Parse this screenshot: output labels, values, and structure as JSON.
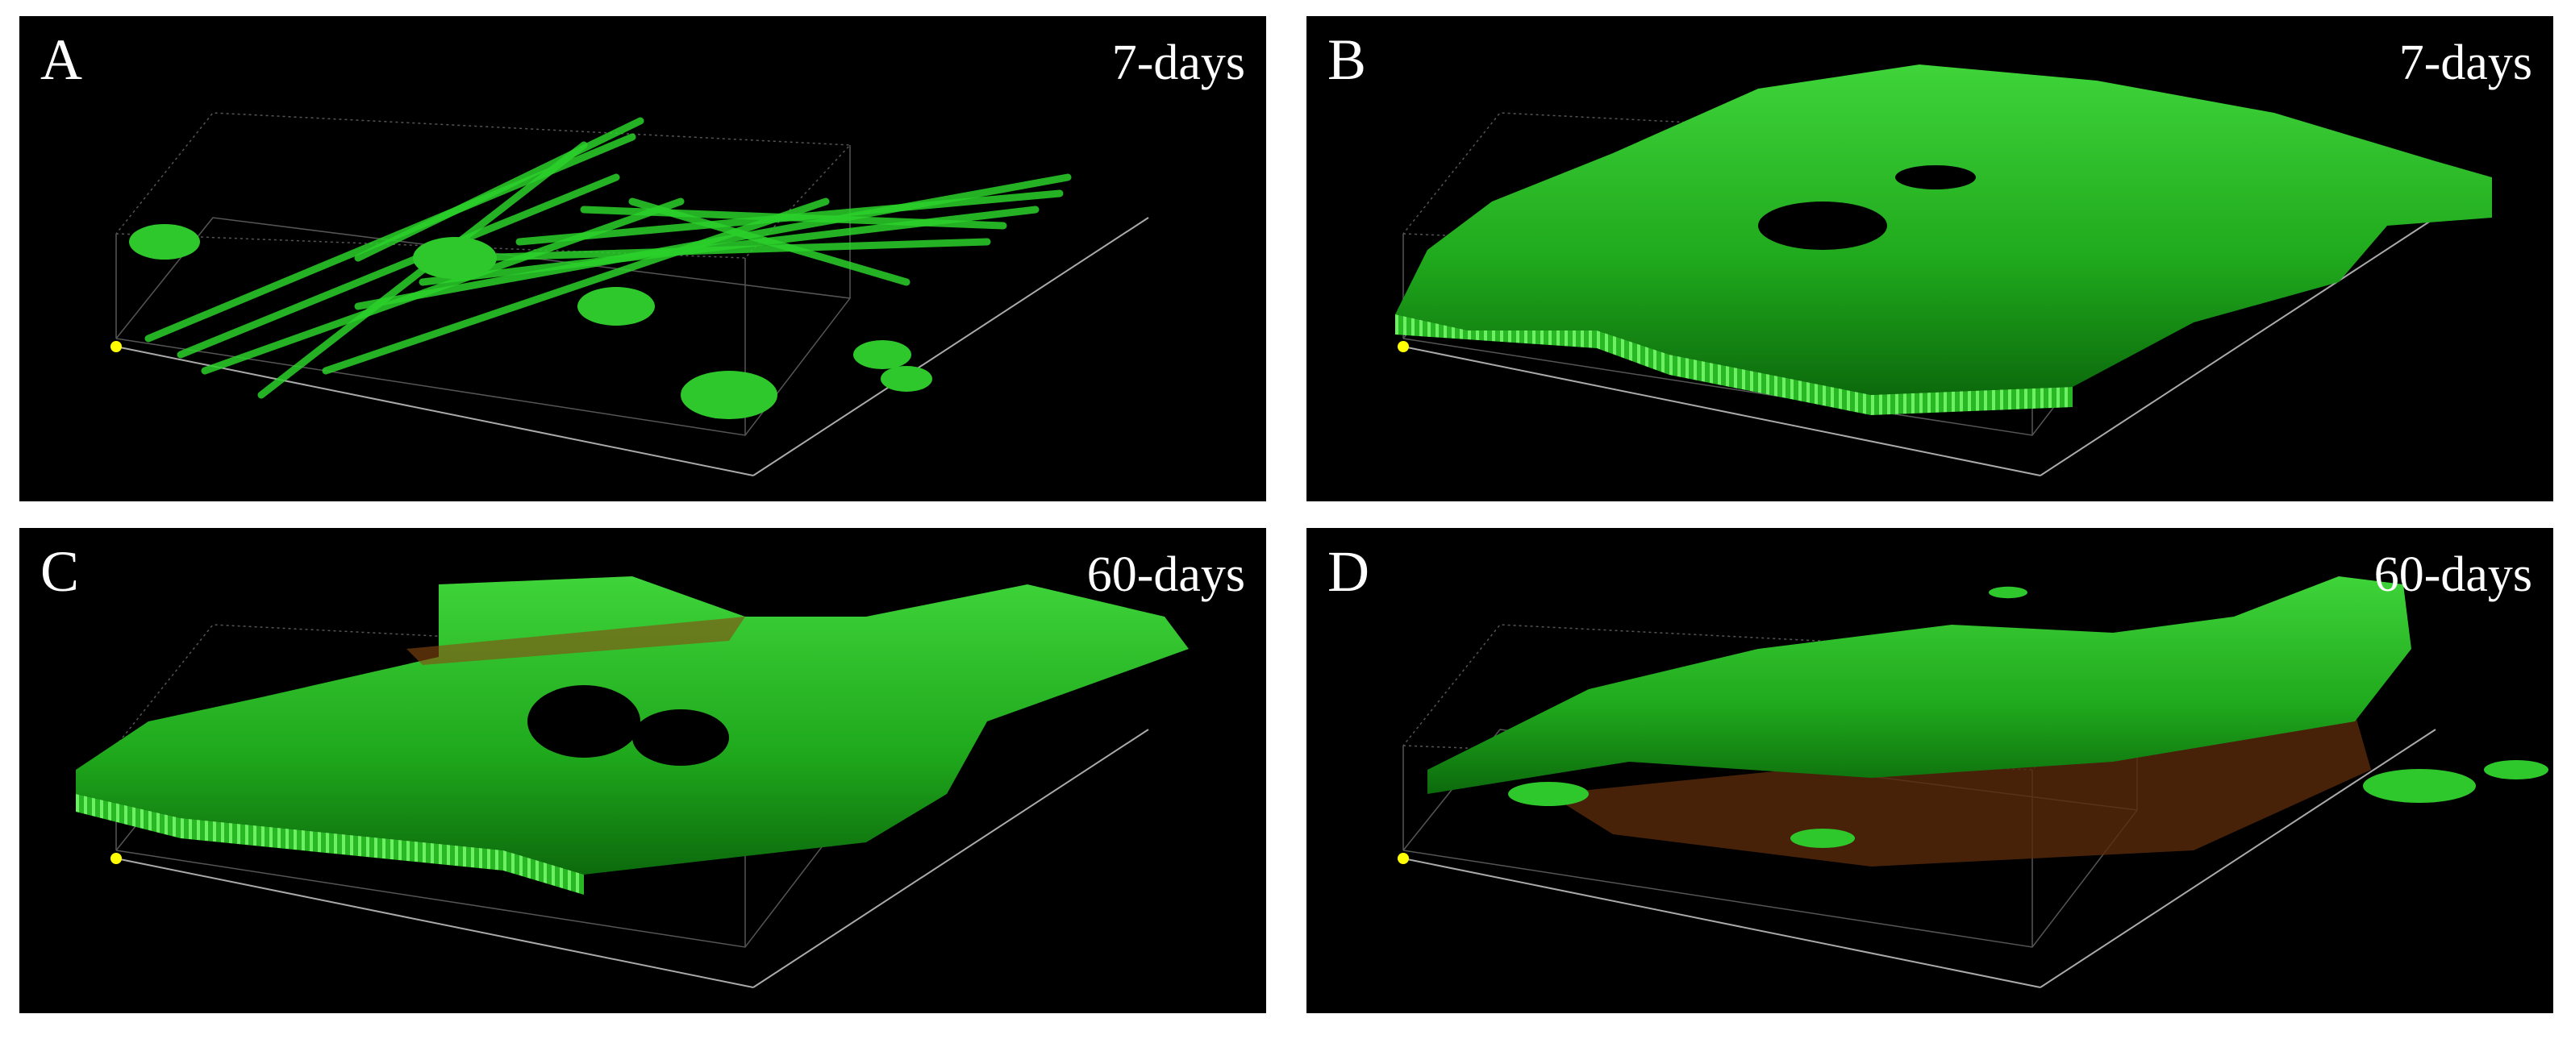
{
  "panels": [
    {
      "letter": "A",
      "label": "7-days"
    },
    {
      "letter": "B",
      "label": "7-days"
    },
    {
      "letter": "C",
      "label": "60-days"
    },
    {
      "letter": "D",
      "label": "60-days"
    }
  ]
}
